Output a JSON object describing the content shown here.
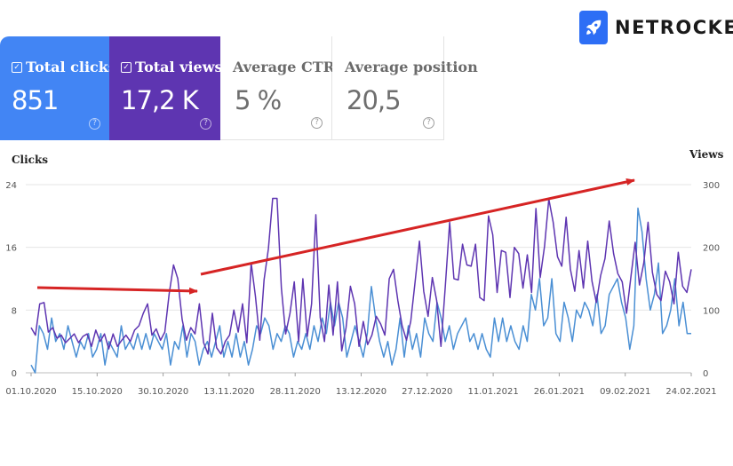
{
  "brand": {
    "name": "NETROCKET"
  },
  "cards": [
    {
      "id": "clicks",
      "label": "Total clicks",
      "value": "851",
      "checked": true,
      "color": "#4285f4"
    },
    {
      "id": "views",
      "label": "Total views",
      "value": "17,2 K",
      "checked": true,
      "color": "#5e35b1"
    },
    {
      "id": "ctr",
      "label": "Average CTR",
      "value": "5 %",
      "checked": false
    },
    {
      "id": "pos",
      "label": "Average position",
      "value": "20,5",
      "checked": false
    }
  ],
  "chart_data": {
    "type": "line",
    "left_axis": {
      "label": "Clicks",
      "range": [
        0,
        24
      ],
      "ticks": [
        0,
        8,
        16,
        24
      ]
    },
    "right_axis": {
      "label": "Views",
      "range": [
        0,
        300
      ],
      "ticks": [
        0,
        100,
        200,
        300
      ]
    },
    "x_tick_labels": [
      "01.10.2020",
      "15.10.2020",
      "30.10.2020",
      "13.11.2020",
      "28.11.2020",
      "13.12.2020",
      "27.12.2020",
      "11.01.2021",
      "26.01.2021",
      "09.02.2021",
      "24.02.2021"
    ],
    "series": [
      {
        "name": "Total views",
        "axis": "right",
        "color": "#5e35b1",
        "values": [
          72,
          65,
          60,
          110,
          112,
          88,
          65,
          72,
          55,
          60,
          48,
          55,
          45,
          62,
          50,
          48,
          58,
          48,
          62,
          42,
          68,
          50,
          62,
          45,
          38,
          62,
          42,
          52,
          60,
          55,
          50,
          68,
          75,
          92,
          95,
          95,
          110,
          60,
          70,
          52,
          65,
          112,
          126,
          172,
          150,
          85,
          52,
          72,
          62,
          70,
          110,
          48,
          30,
          95,
          55,
          40,
          30,
          40,
          50,
          48,
          60,
          100,
          65,
          28,
          110,
          48,
          120,
          175,
          122,
          52,
          148,
          198,
          278,
          278,
          135,
          62,
          75,
          95,
          145,
          50,
          150,
          125,
          58,
          110,
          252,
          88,
          65,
          50,
          140,
          60,
          145,
          35,
          72,
          138,
          58,
          110,
          42,
          82,
          45,
          60,
          30,
          90,
          78,
          60,
          150,
          120,
          165,
          115,
          75,
          52,
          82,
          145,
          210,
          130,
          120,
          90,
          95,
          152,
          115,
          42,
          138,
          240,
          180,
          150,
          148,
          205,
          172,
          170,
          205,
          120,
          115,
          250,
          220,
          128,
          195,
          192,
          120,
          200,
          190,
          135,
          185,
          188,
          128,
          262,
          152,
          202,
          277,
          240,
          185,
          170,
          175,
          248,
          165,
          130,
          195,
          135,
          165,
          210,
          146,
          112,
          155,
          162,
          182,
          242,
          190,
          158,
          145,
          95,
          30,
          152,
          208,
          177,
          140,
          175,
          240,
          160,
          125,
          115,
          162,
          145,
          172,
          142,
          110,
          192,
          138,
          128,
          138,
          115,
          145,
          128,
          165
        ],
        "render_values": [
          72,
          60,
          110,
          112,
          65,
          72,
          55,
          60,
          48,
          55,
          62,
          48,
          58,
          62,
          42,
          68,
          50,
          62,
          38,
          62,
          42,
          52,
          60,
          50,
          68,
          75,
          95,
          110,
          60,
          70,
          52,
          65,
          126,
          172,
          150,
          85,
          52,
          72,
          62,
          110,
          48,
          30,
          95,
          40,
          30,
          50,
          60,
          100,
          65,
          110,
          48,
          175,
          122,
          52,
          148,
          198,
          278,
          278,
          135,
          62,
          95,
          145,
          50,
          150,
          58,
          110,
          252,
          88,
          50,
          140,
          60,
          145,
          35,
          72,
          138,
          110,
          42,
          82,
          45,
          60,
          90,
          78,
          60,
          150,
          165,
          115,
          75,
          52,
          82,
          145,
          210,
          130,
          90,
          152,
          115,
          42,
          138,
          240,
          150,
          148,
          205,
          172,
          170,
          205,
          120,
          115,
          250,
          220,
          128,
          195,
          192,
          120,
          200,
          190,
          135,
          188,
          128,
          262,
          152,
          202,
          277,
          240,
          185,
          170,
          248,
          165,
          130,
          195,
          135,
          210,
          146,
          112,
          155,
          182,
          242,
          190,
          158,
          145,
          95,
          152,
          208,
          140,
          175,
          240,
          160,
          125,
          115,
          162,
          145,
          110,
          192,
          138,
          128,
          165
        ]
      },
      {
        "name": "Total clicks",
        "axis": "left",
        "color": "#4a8fd4",
        "values": [
          1,
          0,
          2,
          6,
          5,
          3,
          7,
          4,
          5,
          3,
          6,
          4,
          2,
          4,
          3,
          5,
          2,
          3,
          5,
          1,
          4,
          3,
          2,
          6,
          3,
          4,
          3,
          4,
          2,
          5,
          3,
          5,
          3,
          5,
          4,
          3,
          5,
          1,
          4,
          3,
          6,
          2,
          5,
          4,
          4,
          1,
          3,
          4,
          2,
          4,
          6,
          2,
          4,
          2,
          3,
          5,
          2,
          4,
          1,
          3,
          6,
          5,
          4,
          7,
          6,
          3,
          5,
          4,
          4,
          6,
          5,
          2,
          4,
          3,
          5,
          3,
          6,
          4,
          7,
          7,
          5,
          9,
          6,
          9,
          7,
          2,
          4,
          6,
          4,
          2,
          5,
          4,
          3,
          11,
          7,
          4,
          2,
          4,
          1,
          3,
          7,
          2,
          4,
          6,
          3,
          5,
          2,
          3,
          7,
          5,
          4,
          9,
          7,
          4,
          6,
          3,
          3,
          5,
          6,
          7,
          4,
          5,
          4,
          3,
          5,
          3,
          2,
          7,
          4,
          5,
          7,
          4,
          6,
          4,
          3,
          6,
          4,
          3,
          5,
          10,
          8,
          12,
          6,
          7,
          10,
          12,
          5,
          4,
          6,
          9,
          7,
          4,
          6,
          8,
          7,
          9,
          8,
          6,
          10,
          7,
          5,
          6,
          10,
          11,
          12,
          9,
          7,
          5,
          3,
          6,
          21,
          18,
          12,
          8,
          10,
          14,
          7,
          5,
          6,
          8,
          7,
          12,
          6,
          9,
          6,
          5,
          5
        ],
        "render_values": [
          1,
          0,
          6,
          5,
          3,
          7,
          4,
          5,
          3,
          6,
          4,
          2,
          4,
          3,
          5,
          2,
          3,
          5,
          1,
          4,
          3,
          2,
          6,
          3,
          4,
          3,
          5,
          3,
          5,
          3,
          5,
          4,
          3,
          5,
          1,
          4,
          3,
          6,
          2,
          5,
          4,
          1,
          3,
          4,
          2,
          4,
          6,
          2,
          4,
          2,
          5,
          2,
          4,
          1,
          3,
          6,
          5,
          7,
          6,
          3,
          5,
          4,
          6,
          5,
          2,
          4,
          3,
          5,
          3,
          6,
          4,
          7,
          5,
          9,
          6,
          9,
          7,
          2,
          4,
          6,
          4,
          2,
          5,
          11,
          7,
          4,
          2,
          4,
          1,
          3,
          7,
          2,
          6,
          3,
          5,
          2,
          7,
          5,
          4,
          9,
          7,
          4,
          6,
          3,
          5,
          6,
          7,
          4,
          5,
          3,
          5,
          3,
          2,
          7,
          4,
          7,
          4,
          6,
          4,
          3,
          6,
          4,
          10,
          8,
          12,
          6,
          7,
          12,
          5,
          4,
          9,
          7,
          4,
          8,
          7,
          9,
          8,
          6,
          10,
          5,
          6,
          10,
          11,
          12,
          9,
          7,
          3,
          6,
          21,
          18,
          12,
          8,
          10,
          14,
          5,
          6,
          8,
          12,
          6,
          9,
          5,
          5
        ]
      }
    ],
    "annotations": [
      {
        "type": "arrow",
        "color": "#d62424",
        "description": "flat trend arrow (Oct 2020)"
      },
      {
        "type": "arrow",
        "color": "#d62424",
        "description": "rising trend arrow (Nov 2020 – Feb 2021)"
      }
    ]
  }
}
